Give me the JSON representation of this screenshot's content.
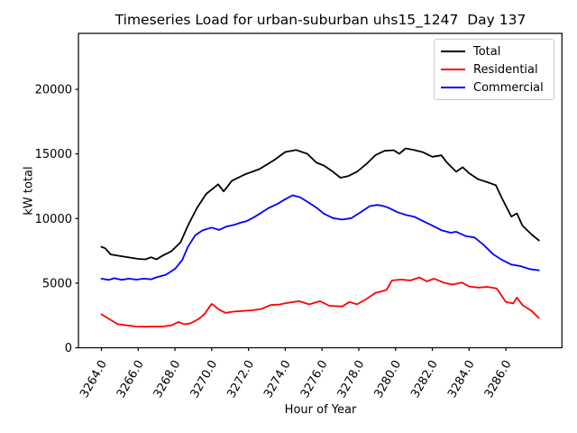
{
  "chart_data": {
    "type": "line",
    "title": "Timeseries Load for urban-suburban uhs15_1247  Day 137",
    "xlabel": "Hour of Year",
    "ylabel": "kW total",
    "xlim": [
      3262.75,
      3289.05
    ],
    "ylim": [
      0,
      24330
    ],
    "x_tick_labels": [
      "3264.0",
      "3266.0",
      "3268.0",
      "3270.0",
      "3272.0",
      "3274.0",
      "3276.0",
      "3278.0",
      "3280.0",
      "3282.0",
      "3284.0",
      "3286.0"
    ],
    "x_ticks": [
      3264,
      3266,
      3268,
      3270,
      3272,
      3274,
      3276,
      3278,
      3280,
      3282,
      3284,
      3286
    ],
    "y_ticks": [
      0,
      5000,
      10000,
      15000,
      20000
    ],
    "y_tick_labels": [
      "0",
      "5000",
      "10000",
      "15000",
      "20000"
    ],
    "grid": false,
    "legend_position": "upper right",
    "axis_color": "#000000",
    "background_color": "#ffffff",
    "series": [
      {
        "name": "Total",
        "color": "#000000",
        "points": [
          [
            3264.0,
            7810
          ],
          [
            3264.2,
            7700
          ],
          [
            3264.5,
            7225
          ],
          [
            3265.0,
            7100
          ],
          [
            3265.5,
            6990
          ],
          [
            3266.0,
            6880
          ],
          [
            3266.4,
            6840
          ],
          [
            3266.7,
            7000
          ],
          [
            3267.0,
            6840
          ],
          [
            3267.3,
            7110
          ],
          [
            3267.8,
            7460
          ],
          [
            3268.3,
            8155
          ],
          [
            3268.7,
            9430
          ],
          [
            3269.2,
            10820
          ],
          [
            3269.7,
            11900
          ],
          [
            3270.35,
            12650
          ],
          [
            3270.65,
            12100
          ],
          [
            3271.1,
            12930
          ],
          [
            3271.8,
            13410
          ],
          [
            3272.6,
            13830
          ],
          [
            3273.4,
            14530
          ],
          [
            3274.0,
            15150
          ],
          [
            3274.6,
            15300
          ],
          [
            3275.2,
            15010
          ],
          [
            3275.7,
            14320
          ],
          [
            3276.1,
            14100
          ],
          [
            3276.6,
            13620
          ],
          [
            3277.0,
            13160
          ],
          [
            3277.4,
            13270
          ],
          [
            3277.9,
            13620
          ],
          [
            3278.4,
            14200
          ],
          [
            3278.9,
            14900
          ],
          [
            3279.4,
            15240
          ],
          [
            3279.9,
            15290
          ],
          [
            3280.2,
            15010
          ],
          [
            3280.55,
            15430
          ],
          [
            3281.0,
            15300
          ],
          [
            3281.5,
            15130
          ],
          [
            3282.0,
            14780
          ],
          [
            3282.5,
            14890
          ],
          [
            3282.8,
            14320
          ],
          [
            3283.3,
            13620
          ],
          [
            3283.65,
            13970
          ],
          [
            3284.0,
            13510
          ],
          [
            3284.5,
            13040
          ],
          [
            3285.0,
            12810
          ],
          [
            3285.45,
            12580
          ],
          [
            3285.8,
            11540
          ],
          [
            3286.3,
            10150
          ],
          [
            3286.6,
            10400
          ],
          [
            3286.9,
            9450
          ],
          [
            3287.4,
            8760
          ],
          [
            3287.8,
            8300
          ]
        ]
      },
      {
        "name": "Residential",
        "color": "#ff0000",
        "points": [
          [
            3264.0,
            2590
          ],
          [
            3264.4,
            2240
          ],
          [
            3264.9,
            1820
          ],
          [
            3265.4,
            1730
          ],
          [
            3265.9,
            1640
          ],
          [
            3266.4,
            1630
          ],
          [
            3266.9,
            1650
          ],
          [
            3267.3,
            1640
          ],
          [
            3267.8,
            1730
          ],
          [
            3268.2,
            2000
          ],
          [
            3268.5,
            1820
          ],
          [
            3268.8,
            1870
          ],
          [
            3269.0,
            2000
          ],
          [
            3269.3,
            2240
          ],
          [
            3269.6,
            2600
          ],
          [
            3270.0,
            3400
          ],
          [
            3270.4,
            2950
          ],
          [
            3270.75,
            2700
          ],
          [
            3271.2,
            2800
          ],
          [
            3271.7,
            2850
          ],
          [
            3272.2,
            2900
          ],
          [
            3272.7,
            3000
          ],
          [
            3273.2,
            3300
          ],
          [
            3273.7,
            3350
          ],
          [
            3274.1,
            3470
          ],
          [
            3274.75,
            3600
          ],
          [
            3275.3,
            3355
          ],
          [
            3275.9,
            3600
          ],
          [
            3276.4,
            3245
          ],
          [
            3277.1,
            3195
          ],
          [
            3277.5,
            3545
          ],
          [
            3277.9,
            3355
          ],
          [
            3278.4,
            3760
          ],
          [
            3278.9,
            4240
          ],
          [
            3279.5,
            4470
          ],
          [
            3279.8,
            5210
          ],
          [
            3280.3,
            5280
          ],
          [
            3280.8,
            5210
          ],
          [
            3281.3,
            5440
          ],
          [
            3281.7,
            5140
          ],
          [
            3282.1,
            5350
          ],
          [
            3282.6,
            5050
          ],
          [
            3283.1,
            4890
          ],
          [
            3283.6,
            5050
          ],
          [
            3284.0,
            4750
          ],
          [
            3284.5,
            4660
          ],
          [
            3285.0,
            4710
          ],
          [
            3285.5,
            4590
          ],
          [
            3286.0,
            3545
          ],
          [
            3286.4,
            3425
          ],
          [
            3286.6,
            3890
          ],
          [
            3286.9,
            3310
          ],
          [
            3287.4,
            2850
          ],
          [
            3287.8,
            2300
          ]
        ]
      },
      {
        "name": "Commercial",
        "color": "#0000ff",
        "points": [
          [
            3264.0,
            5350
          ],
          [
            3264.4,
            5250
          ],
          [
            3264.7,
            5380
          ],
          [
            3265.1,
            5260
          ],
          [
            3265.5,
            5350
          ],
          [
            3265.9,
            5270
          ],
          [
            3266.3,
            5350
          ],
          [
            3266.7,
            5300
          ],
          [
            3267.0,
            5450
          ],
          [
            3267.5,
            5650
          ],
          [
            3268.0,
            6100
          ],
          [
            3268.4,
            6800
          ],
          [
            3268.7,
            7800
          ],
          [
            3269.1,
            8700
          ],
          [
            3269.5,
            9080
          ],
          [
            3270.0,
            9300
          ],
          [
            3270.4,
            9120
          ],
          [
            3270.8,
            9380
          ],
          [
            3271.2,
            9500
          ],
          [
            3271.6,
            9700
          ],
          [
            3271.9,
            9800
          ],
          [
            3272.3,
            10100
          ],
          [
            3272.7,
            10450
          ],
          [
            3273.1,
            10820
          ],
          [
            3273.6,
            11150
          ],
          [
            3274.0,
            11500
          ],
          [
            3274.4,
            11800
          ],
          [
            3274.8,
            11650
          ],
          [
            3275.2,
            11300
          ],
          [
            3275.7,
            10840
          ],
          [
            3276.1,
            10380
          ],
          [
            3276.6,
            10030
          ],
          [
            3277.1,
            9920
          ],
          [
            3277.6,
            10030
          ],
          [
            3278.1,
            10490
          ],
          [
            3278.6,
            10960
          ],
          [
            3279.0,
            11050
          ],
          [
            3279.3,
            10980
          ],
          [
            3279.6,
            10840
          ],
          [
            3280.1,
            10490
          ],
          [
            3280.6,
            10260
          ],
          [
            3281.0,
            10150
          ],
          [
            3281.5,
            9800
          ],
          [
            3282.0,
            9450
          ],
          [
            3282.5,
            9100
          ],
          [
            3283.0,
            8900
          ],
          [
            3283.3,
            8980
          ],
          [
            3283.8,
            8650
          ],
          [
            3284.3,
            8530
          ],
          [
            3284.8,
            7950
          ],
          [
            3285.3,
            7250
          ],
          [
            3285.8,
            6790
          ],
          [
            3286.3,
            6440
          ],
          [
            3286.8,
            6320
          ],
          [
            3287.3,
            6090
          ],
          [
            3287.8,
            6000
          ]
        ]
      }
    ]
  }
}
